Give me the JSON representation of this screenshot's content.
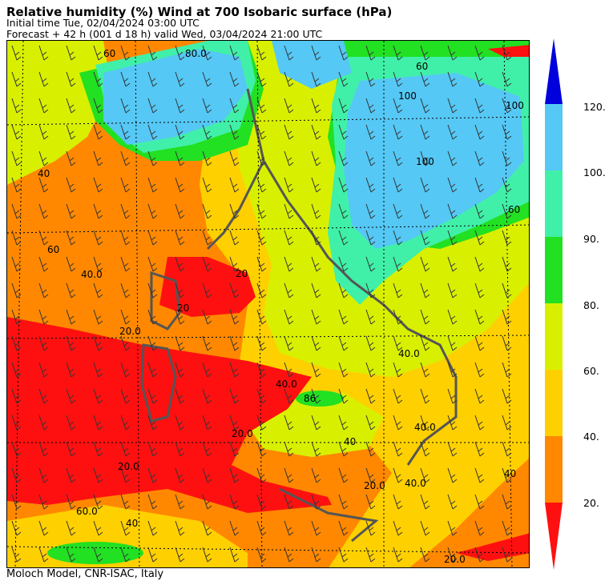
{
  "header": {
    "title": "Relative humidity (%) Wind  at 700 Isobaric surface (hPa)",
    "initial_time": "Initial time  Tue, 02/04/2024  03:00 UTC",
    "forecast": "Forecast  +  42 h  (001 d 18 h)  valid Wed, 03/04/2024 21:00 UTC"
  },
  "footer": {
    "credit": "Moloch Model, CNR-ISAC, Italy"
  },
  "legend": {
    "labels": [
      "120.",
      "100.",
      "90.",
      "80.",
      "60.",
      "40.",
      "20."
    ],
    "classes": [
      {
        "color": "#0000dd",
        "range": "above 120"
      },
      {
        "color": "#55c8f5",
        "range": "100-120"
      },
      {
        "color": "#40f0a8",
        "range": "90-100"
      },
      {
        "color": "#22e022",
        "range": "80-90"
      },
      {
        "color": "#d8f000",
        "range": "60-80"
      },
      {
        "color": "#ffd000",
        "range": "40-60"
      },
      {
        "color": "#ff8800",
        "range": "20-40"
      },
      {
        "color": "#ff1010",
        "range": "below 20"
      }
    ]
  },
  "map": {
    "contour_labels": [
      "80.0",
      "100",
      "100",
      "60",
      "100",
      "60",
      "40",
      "60",
      "20",
      "20",
      "20.0",
      "40.0",
      "40.0",
      "86",
      "20.0",
      "20.0",
      "60.0",
      "40",
      "40.0",
      "40.0",
      "40.0",
      "40",
      "20.0",
      "60",
      "40",
      "20.0"
    ]
  }
}
